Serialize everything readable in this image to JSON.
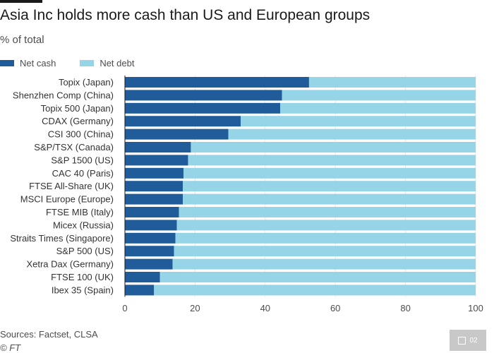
{
  "title": "Asia Inc holds more cash than US and European groups",
  "subtitle": "% of total",
  "legend": [
    {
      "label": "Net cash",
      "color": "#1f5c99"
    },
    {
      "label": "Net debt",
      "color": "#96d4e8"
    }
  ],
  "footer": {
    "source": "Sources: Factset, CLSA",
    "credit": "© FT"
  },
  "badge": {
    "label": "02"
  },
  "chart_data": {
    "type": "bar",
    "orientation": "horizontal",
    "stacked": true,
    "categories": [
      "Topix (Japan)",
      "Shenzhen Comp (China)",
      "Topix 500 (Japan)",
      "CDAX (Germany)",
      "CSI 300 (China)",
      "S&P/TSX (Canada)",
      "S&P 1500 (US)",
      "CAC 40 (Paris)",
      "FTSE All-Share (UK)",
      "MSCI Europe (Europe)",
      "FTSE MIB (Italy)",
      "Micex (Russia)",
      "Straits Times (Singapore)",
      "S&P 500 (US)",
      "Xetra Dax (Germany)",
      "FTSE 100 (UK)",
      "Ibex 35 (Spain)"
    ],
    "series": [
      {
        "name": "Net cash",
        "color": "#1f5c99",
        "values": [
          52.5,
          44.8,
          44.3,
          33.0,
          29.5,
          18.8,
          18.0,
          16.7,
          16.5,
          16.5,
          15.4,
          14.8,
          14.4,
          14.0,
          13.6,
          10.0,
          8.3
        ]
      },
      {
        "name": "Net debt",
        "color": "#96d4e8",
        "values": [
          47.5,
          55.2,
          55.7,
          67.0,
          70.5,
          81.2,
          82.0,
          83.3,
          83.5,
          83.5,
          84.6,
          85.2,
          85.6,
          86.0,
          86.4,
          90.0,
          91.7
        ]
      }
    ],
    "xlim": [
      0,
      100
    ],
    "xticks": [
      "0",
      "20",
      "40",
      "60",
      "80",
      "100"
    ],
    "xlabel": "",
    "ylabel": ""
  }
}
